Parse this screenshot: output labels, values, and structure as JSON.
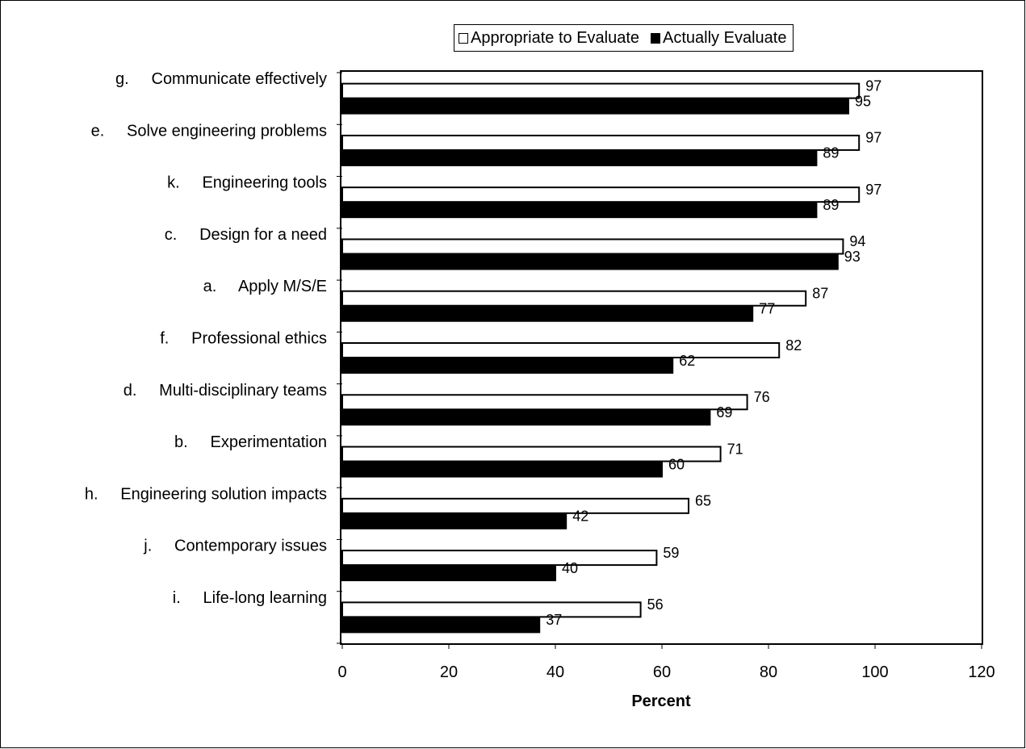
{
  "chart_data": {
    "type": "bar",
    "orientation": "horizontal",
    "categories": [
      "g.     Communicate effectively",
      "e.     Solve engineering problems",
      "k.     Engineering tools",
      "c.     Design for a need",
      "a.     Apply M/S/E",
      "f.     Professional ethics",
      "d.     Multi-disciplinary teams",
      "b.     Experimentation",
      "h.     Engineering solution impacts",
      "j.     Contemporary issues",
      "i.     Life-long learning"
    ],
    "series": [
      {
        "name": "Appropriate to Evaluate",
        "color": "#ffffff",
        "values": [
          97,
          97,
          97,
          94,
          87,
          82,
          76,
          71,
          65,
          59,
          56
        ]
      },
      {
        "name": "Actually Evaluate",
        "color": "#000000",
        "values": [
          95,
          89,
          89,
          93,
          77,
          62,
          69,
          60,
          42,
          40,
          37
        ]
      }
    ],
    "xlabel": "Percent",
    "xlim": [
      0,
      120
    ],
    "xticks": [
      0,
      20,
      40,
      60,
      80,
      100,
      120
    ],
    "grid": false,
    "legend_position": "top"
  }
}
